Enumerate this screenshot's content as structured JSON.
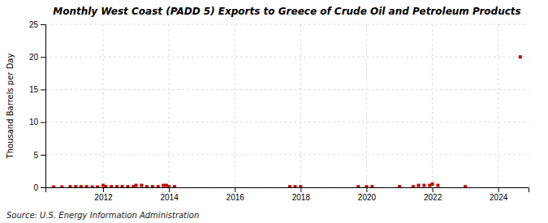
{
  "chart_data": {
    "type": "scatter",
    "title": "Monthly West Coast (PADD 5) Exports to Greece of Crude Oil and Petroleum Products",
    "y_label": "Thousand Barrels per Day",
    "annotations": [
      "Source: U.S. Energy Information Administration"
    ],
    "x": [
      2010.5,
      2010.75,
      2011.0,
      2011.17,
      2011.33,
      2011.5,
      2011.67,
      2011.83,
      2012.0,
      2012.08,
      2012.25,
      2012.42,
      2012.58,
      2012.75,
      2012.92,
      2013.0,
      2013.17,
      2013.33,
      2013.5,
      2013.67,
      2013.83,
      2013.92,
      2014.0,
      2014.17,
      2017.67,
      2017.83,
      2018.0,
      2019.75,
      2020.0,
      2020.17,
      2021.0,
      2021.42,
      2021.58,
      2021.75,
      2021.92,
      2022.0,
      2022.17,
      2023.0,
      2024.67
    ],
    "values": [
      0.05,
      0.05,
      0.1,
      0.1,
      0.1,
      0.1,
      0.05,
      0.05,
      0.3,
      0.1,
      0.1,
      0.1,
      0.1,
      0.1,
      0.1,
      0.3,
      0.3,
      0.1,
      0.1,
      0.1,
      0.3,
      0.3,
      0.1,
      0.1,
      0.1,
      0.1,
      0.1,
      0.1,
      0.1,
      0.1,
      0.1,
      0.1,
      0.3,
      0.3,
      0.3,
      0.5,
      0.3,
      0.1,
      20.0
    ],
    "color": "#cc0000",
    "marker": "square",
    "xlim": [
      2010.25,
      2024.92
    ],
    "xticks": [
      2012,
      2014,
      2016,
      2018,
      2020,
      2022,
      2024
    ],
    "ylim": [
      0,
      25
    ],
    "yticks": [
      0,
      5,
      10,
      15,
      20,
      25
    ],
    "grid": true
  }
}
